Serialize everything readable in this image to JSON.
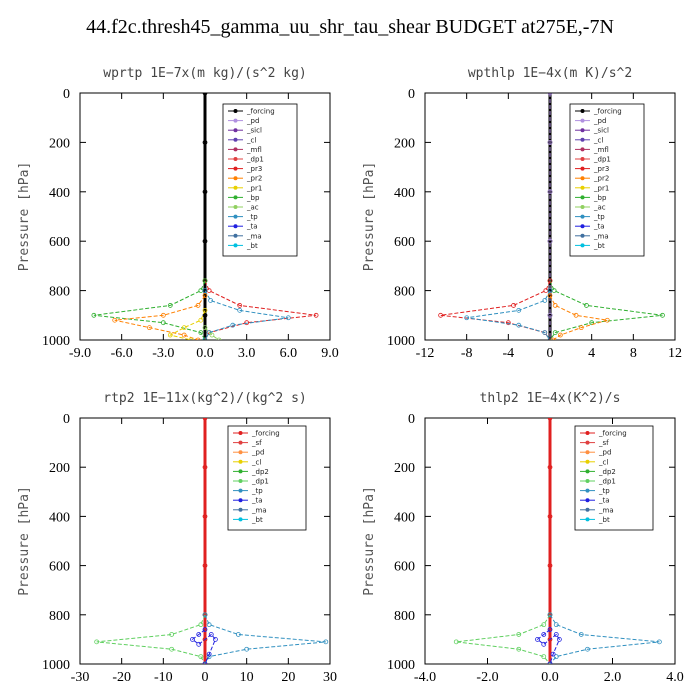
{
  "figure_title": "44.f2c.thresh45_gamma_uu_shr_tau_shear  BUDGET at275E,-7N",
  "chart_data": [
    {
      "type": "line",
      "title": "wprtp  1E−7x(m kg)/(s^2 kg)",
      "ylabel": "Pressure [hPa]",
      "xlim": [
        -9,
        9
      ],
      "ylim": [
        1000,
        0
      ],
      "x_ticks": [
        "-9.0",
        "-6.0",
        "-3.0",
        "0.0",
        "3.0",
        "6.0",
        "9.0"
      ],
      "y_ticks": [
        "0",
        "200",
        "400",
        "600",
        "800",
        "1000"
      ],
      "legend": [
        "_forcing",
        "_pd",
        "_sicl",
        "_cl",
        "_mfl",
        "_dp1",
        "_pr3",
        "_pr2",
        "_pr1",
        "_bp",
        "_ac",
        "_tp",
        "_ta",
        "_ma",
        "_bt"
      ],
      "colors": [
        "#000000",
        "#b090e0",
        "#7030a0",
        "#6040b0",
        "#b03060",
        "#e04040",
        "#e02020",
        "#ff8000",
        "#e8d000",
        "#30b030",
        "#90d060",
        "#3090c0",
        "#2020e0",
        "#4070a0",
        "#00c0e0"
      ],
      "series": [
        {
          "name": "_forcing",
          "x": [
            0,
            0,
            0,
            0,
            0,
            0,
            0
          ],
          "y": [
            0,
            200,
            400,
            600,
            800,
            900,
            1000
          ]
        },
        {
          "name": "_pr3",
          "x": [
            0,
            0.3,
            2.5,
            8.0,
            3.0,
            0.3,
            0
          ],
          "y": [
            760,
            800,
            860,
            900,
            930,
            970,
            1000
          ]
        },
        {
          "name": "_bp",
          "x": [
            0,
            -0.3,
            -2.5,
            -8.0,
            -3.0,
            -0.3,
            0
          ],
          "y": [
            760,
            800,
            860,
            900,
            930,
            970,
            1000
          ]
        },
        {
          "name": "_tp",
          "x": [
            0,
            0.4,
            2.5,
            6.0,
            2.0,
            0.3,
            0
          ],
          "y": [
            800,
            840,
            880,
            910,
            940,
            970,
            1000
          ]
        },
        {
          "name": "_pr2",
          "x": [
            0,
            -0.5,
            -3.0,
            -6.5,
            -4.0,
            -1.5,
            -0.5
          ],
          "y": [
            820,
            860,
            900,
            920,
            950,
            980,
            1000
          ]
        },
        {
          "name": "_pr1",
          "x": [
            0,
            -0.3,
            -1.5,
            -2.5,
            -1.0
          ],
          "y": [
            880,
            920,
            950,
            980,
            1000
          ]
        },
        {
          "name": "_ac",
          "x": [
            0,
            0.5,
            1.0
          ],
          "y": [
            950,
            980,
            1000
          ]
        }
      ]
    },
    {
      "type": "line",
      "title": "wpthlp  1E−4x(m K)/s^2",
      "ylabel": "Pressure [hPa]",
      "xlim": [
        -12,
        12
      ],
      "ylim": [
        1000,
        0
      ],
      "x_ticks": [
        "-12",
        "-8",
        "-4",
        "0",
        "4",
        "8",
        "12"
      ],
      "y_ticks": [
        "0",
        "200",
        "400",
        "600",
        "800",
        "1000"
      ],
      "legend": [
        "_forcing",
        "_pd",
        "_sicl",
        "_cl",
        "_mfl",
        "_dp1",
        "_pr3",
        "_pr2",
        "_pr1",
        "_bp",
        "_ac",
        "_tp",
        "_ta",
        "_ma",
        "_bt"
      ],
      "colors": [
        "#000000",
        "#b090e0",
        "#7030a0",
        "#6040b0",
        "#b03060",
        "#e04040",
        "#e02020",
        "#ff8000",
        "#e8d000",
        "#30b030",
        "#90d060",
        "#3090c0",
        "#2020e0",
        "#4070a0",
        "#00c0e0"
      ],
      "series": [
        {
          "name": "_forcing",
          "x": [
            0,
            0,
            0,
            0,
            0,
            0,
            0
          ],
          "y": [
            0,
            200,
            400,
            600,
            800,
            900,
            1000
          ]
        },
        {
          "name": "_pd",
          "x": [
            0,
            0,
            0,
            0,
            0,
            0,
            0
          ],
          "y": [
            0,
            200,
            400,
            600,
            800,
            900,
            1000
          ]
        },
        {
          "name": "_bp",
          "x": [
            0,
            0.4,
            3.5,
            10.8,
            4.0,
            0.5,
            0
          ],
          "y": [
            760,
            800,
            860,
            900,
            930,
            970,
            1000
          ]
        },
        {
          "name": "_pr3",
          "x": [
            0,
            -0.4,
            -3.5,
            -10.5,
            -4.0,
            -0.5,
            0
          ],
          "y": [
            760,
            800,
            860,
            900,
            930,
            970,
            1000
          ]
        },
        {
          "name": "_tp",
          "x": [
            0,
            -0.5,
            -3.0,
            -8.0,
            -3.0,
            -0.5,
            0
          ],
          "y": [
            800,
            840,
            880,
            910,
            940,
            970,
            1000
          ]
        },
        {
          "name": "_pr2",
          "x": [
            0,
            0.5,
            2.5,
            5.5,
            3.0,
            1.0,
            0.3
          ],
          "y": [
            820,
            860,
            900,
            920,
            950,
            980,
            1000
          ]
        }
      ]
    },
    {
      "type": "line",
      "title": "rtp2  1E−11x(kg^2)/(kg^2 s)",
      "ylabel": "Pressure [hPa]",
      "xlim": [
        -30,
        30
      ],
      "ylim": [
        1000,
        0
      ],
      "x_ticks": [
        "-30",
        "-20",
        "-10",
        "0",
        "10",
        "20",
        "30"
      ],
      "y_ticks": [
        "0",
        "200",
        "400",
        "600",
        "800",
        "1000"
      ],
      "legend": [
        "_forcing",
        "_sf",
        "_pd",
        "_cl",
        "_dp2",
        "_dp1",
        "_tp",
        "_ta",
        "_ma",
        "_bt"
      ],
      "colors": [
        "#e02020",
        "#e04040",
        "#ff9040",
        "#e8d000",
        "#30b030",
        "#60d060",
        "#3090c0",
        "#2020e0",
        "#4070a0",
        "#00c0e0"
      ],
      "series": [
        {
          "name": "_forcing",
          "x": [
            0,
            0,
            0,
            0,
            0,
            0,
            0
          ],
          "y": [
            0,
            200,
            400,
            600,
            800,
            900,
            1000
          ]
        },
        {
          "name": "_dp1",
          "x": [
            0,
            -1.0,
            -8.0,
            -26.0,
            -8.0,
            -1.0,
            0
          ],
          "y": [
            800,
            840,
            880,
            910,
            940,
            970,
            1000
          ]
        },
        {
          "name": "_tp",
          "x": [
            0,
            1.0,
            8.0,
            29.0,
            10.0,
            1.0,
            0
          ],
          "y": [
            800,
            840,
            880,
            910,
            940,
            970,
            1000
          ]
        },
        {
          "name": "_ta",
          "x": [
            0,
            -1.5,
            -3.0,
            -1.5,
            1.5,
            2.5,
            1.0,
            0
          ],
          "y": [
            860,
            880,
            900,
            920,
            880,
            900,
            960,
            1000
          ]
        }
      ]
    },
    {
      "type": "line",
      "title": "thlp2  1E−4x(K^2)/s",
      "ylabel": "Pressure [hPa]",
      "xlim": [
        -4,
        4
      ],
      "ylim": [
        1000,
        0
      ],
      "x_ticks": [
        "-4.0",
        "-2.0",
        "0.0",
        "2.0",
        "4.0"
      ],
      "y_ticks": [
        "0",
        "200",
        "400",
        "600",
        "800",
        "1000"
      ],
      "legend": [
        "_forcing",
        "_sf",
        "_pd",
        "_cl",
        "_dp2",
        "_dp1",
        "_tp",
        "_ta",
        "_ma",
        "_bt"
      ],
      "colors": [
        "#e02020",
        "#e04040",
        "#ff9040",
        "#e8d000",
        "#30b030",
        "#60d060",
        "#3090c0",
        "#2020e0",
        "#4070a0",
        "#00c0e0"
      ],
      "series": [
        {
          "name": "_forcing",
          "x": [
            0,
            0,
            0,
            0,
            0,
            0,
            0
          ],
          "y": [
            0,
            200,
            400,
            600,
            800,
            900,
            1000
          ]
        },
        {
          "name": "_dp1",
          "x": [
            0,
            -0.2,
            -1.0,
            -3.0,
            -1.0,
            -0.2,
            0
          ],
          "y": [
            800,
            840,
            880,
            910,
            940,
            970,
            1000
          ]
        },
        {
          "name": "_tp",
          "x": [
            0,
            0.2,
            1.0,
            3.5,
            1.2,
            0.2,
            0
          ],
          "y": [
            800,
            840,
            880,
            910,
            940,
            970,
            1000
          ]
        },
        {
          "name": "_ta",
          "x": [
            0,
            -0.2,
            -0.4,
            -0.2,
            0.2,
            0.3,
            0.1,
            0
          ],
          "y": [
            860,
            880,
            900,
            920,
            880,
            900,
            960,
            1000
          ]
        }
      ]
    }
  ]
}
